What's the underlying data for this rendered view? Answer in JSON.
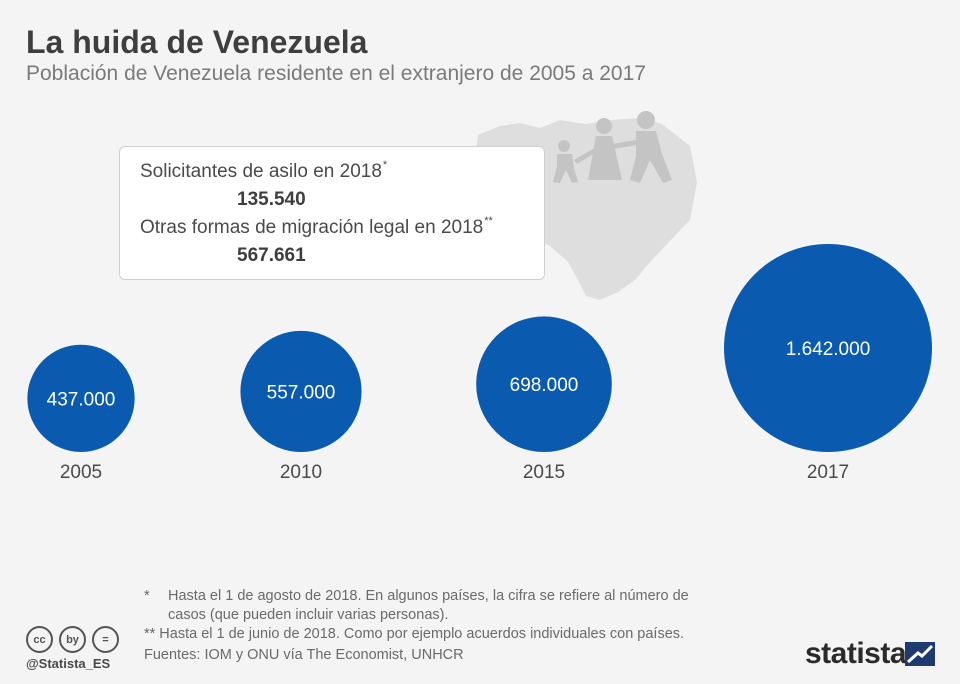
{
  "header": {
    "title": "La huida de Venezuela",
    "subtitle": "Población de Venezuela residente en el extranjero de 2005 a 2017"
  },
  "callout": {
    "asylum_label": "Solicitantes de asilo en 2018",
    "asylum_mark": "*",
    "asylum_value": "135.540",
    "legal_label": "Otras formas de migración legal en 2018",
    "legal_mark": "**",
    "legal_value": "567.661"
  },
  "chart_data": {
    "type": "bubble",
    "title": "La huida de Venezuela",
    "subtitle": "Población de Venezuela residente en el extranjero de 2005 a 2017",
    "categories": [
      "2005",
      "2010",
      "2015",
      "2017"
    ],
    "values": [
      437000,
      557000,
      698000,
      1642000
    ],
    "value_labels": [
      "437.000",
      "557.000",
      "698.000",
      "1.642.000"
    ],
    "color": "#0a5bb0"
  },
  "footnotes": {
    "note1_mark": "*",
    "note1_line1": "Hasta el 1 de agosto de 2018. En algunos países, la cifra se refiere al número de",
    "note1_line2": "casos (que pueden incluir varias personas).",
    "note2_mark": "**",
    "note2_text": "Hasta el 1 de junio de 2018. Como por ejemplo acuerdos individuales con países.",
    "sources": "Fuentes: IOM y ONU vía The Economist, UNHCR"
  },
  "footer": {
    "handle": "@Statista_ES",
    "brand": "statista",
    "license_icons": [
      "cc",
      "by",
      "="
    ]
  },
  "colors": {
    "bubble": "#0a5bb0",
    "background": "#f4f4f4",
    "map": "#dedede"
  }
}
